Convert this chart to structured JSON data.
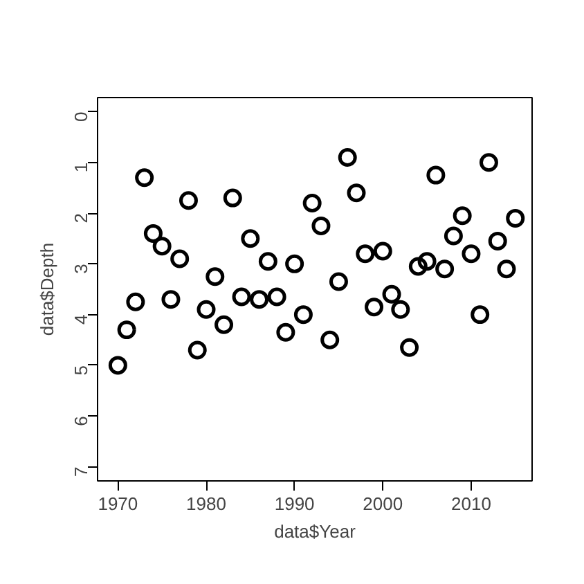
{
  "chart_data": {
    "type": "scatter",
    "xlabel": "data$Year",
    "ylabel": "data$Depth",
    "x": [
      1970,
      1971,
      1972,
      1973,
      1974,
      1975,
      1976,
      1977,
      1978,
      1979,
      1980,
      1981,
      1982,
      1983,
      1984,
      1985,
      1986,
      1987,
      1988,
      1989,
      1990,
      1991,
      1992,
      1993,
      1994,
      1995,
      1996,
      1997,
      1998,
      1999,
      2000,
      2001,
      2002,
      2003,
      2004,
      2005,
      2006,
      2007,
      2008,
      2009,
      2010,
      2011,
      2012,
      2013,
      2014,
      2015
    ],
    "values": [
      5.0,
      4.3,
      3.75,
      1.3,
      2.4,
      2.65,
      3.7,
      2.9,
      1.75,
      4.7,
      3.9,
      3.25,
      4.2,
      1.7,
      3.65,
      2.5,
      3.7,
      2.95,
      3.65,
      4.35,
      3.0,
      4.0,
      1.8,
      2.25,
      4.5,
      3.35,
      0.9,
      1.6,
      2.8,
      3.85,
      2.75,
      3.6,
      3.9,
      4.65,
      3.05,
      2.95,
      1.25,
      3.1,
      2.45,
      2.05,
      2.8,
      4.0,
      1.0,
      2.55,
      3.1,
      2.1
    ],
    "color": "#000000",
    "marker": "circle",
    "grid": false,
    "xlim": [
      1967.7,
      2016.9
    ],
    "ylim": [
      7.28,
      -0.28
    ],
    "xticks": [
      1970,
      1980,
      1990,
      2000,
      2010
    ],
    "yticks": [
      0,
      1,
      2,
      3,
      4,
      5,
      6,
      7
    ]
  }
}
